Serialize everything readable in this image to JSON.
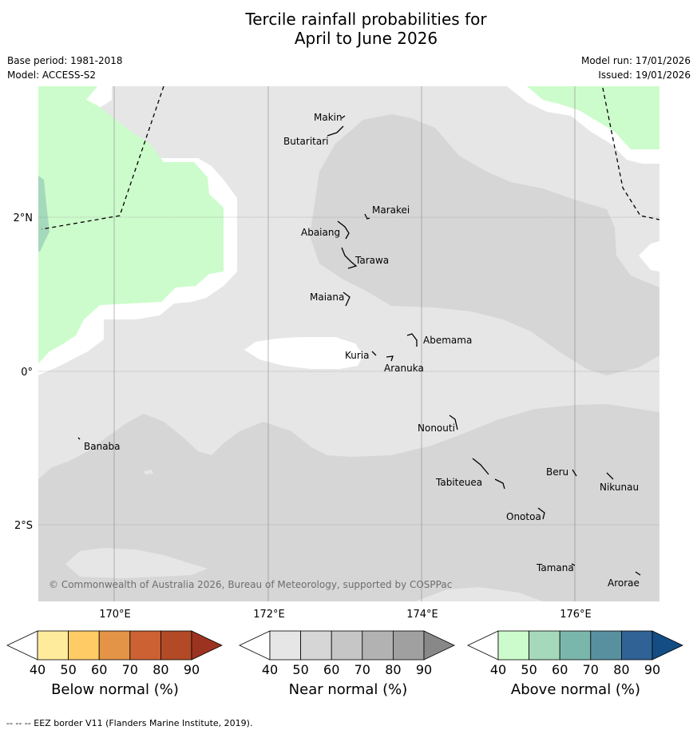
{
  "title_line1": "Tercile rainfall probabilities for",
  "title_line2": "April to June 2026",
  "base_period": "Base period: 1981-2018",
  "model": "Model: ACCESS-S2",
  "model_run": "Model run: 17/01/2026",
  "issued": "Issued: 19/01/2026",
  "lon_labels": [
    "170°E",
    "172°E",
    "174°E",
    "176°E"
  ],
  "lat_labels": [
    "2°N",
    "0°",
    "2°S"
  ],
  "islands": [
    "Makin",
    "Butaritari",
    "Marakei",
    "Abaiang",
    "Tarawa",
    "Maiana",
    "Abemama",
    "Kuria",
    "Aranuka",
    "Nonouti",
    "Banaba",
    "Tabiteuea",
    "Beru",
    "Nikunau",
    "Onotoa",
    "Tamana",
    "Arorae"
  ],
  "copyright": "© Commonwealth of Australia 2026, Bureau of Meteorology, supported by COSPPac",
  "colorbars": [
    {
      "title": "Below normal (%)",
      "ticks": [
        "40",
        "50",
        "60",
        "70",
        "80",
        "90"
      ],
      "colors": [
        "#ffffff",
        "#ffeb9c",
        "#fecb65",
        "#e39447",
        "#cc6133",
        "#b24a26",
        "#9c3320"
      ]
    },
    {
      "title": "Near normal (%)",
      "ticks": [
        "40",
        "50",
        "60",
        "70",
        "80",
        "90"
      ],
      "colors": [
        "#ffffff",
        "#e6e6e6",
        "#d6d6d6",
        "#c6c6c6",
        "#b2b2b2",
        "#a0a0a0",
        "#888888"
      ]
    },
    {
      "title": "Above normal (%)",
      "ticks": [
        "40",
        "50",
        "60",
        "70",
        "80",
        "90"
      ],
      "colors": [
        "#ffffff",
        "#ccfccc",
        "#a6d9bc",
        "#7bb6ac",
        "#5890a0",
        "#316295",
        "#144d84"
      ]
    }
  ],
  "footer": "-- -- -- EEZ border V11 (Flanders Marine Institute, 2019)."
}
